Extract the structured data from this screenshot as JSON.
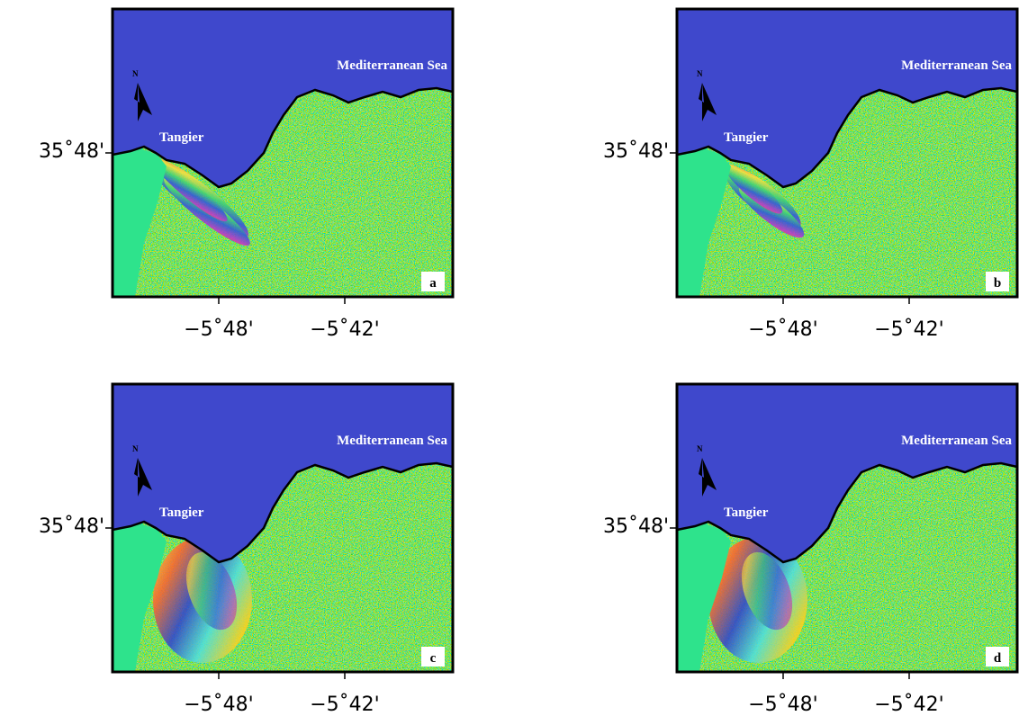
{
  "panels": [
    {
      "letter": "a",
      "sea": "Mediterranean Sea",
      "city": "Tangier",
      "north": "N",
      "lat": "35˚48'",
      "lon": [
        "−5˚48'",
        "−5˚42'"
      ]
    },
    {
      "letter": "b",
      "sea": "Mediterranean Sea",
      "city": "Tangier",
      "north": "N",
      "lat": "35˚48'",
      "lon": [
        "−5˚48'",
        "−5˚42'"
      ]
    },
    {
      "letter": "c",
      "sea": "Mediterranean Sea",
      "city": "Tangier",
      "north": "N",
      "lat": "35˚48'",
      "lon": [
        "−5˚48'",
        "−5˚42'"
      ]
    },
    {
      "letter": "d",
      "sea": "Mediterranean Sea",
      "city": "Tangier",
      "north": "N",
      "lat": "35˚48'",
      "lon": [
        "−5˚48'",
        "−5˚42'"
      ]
    }
  ]
}
